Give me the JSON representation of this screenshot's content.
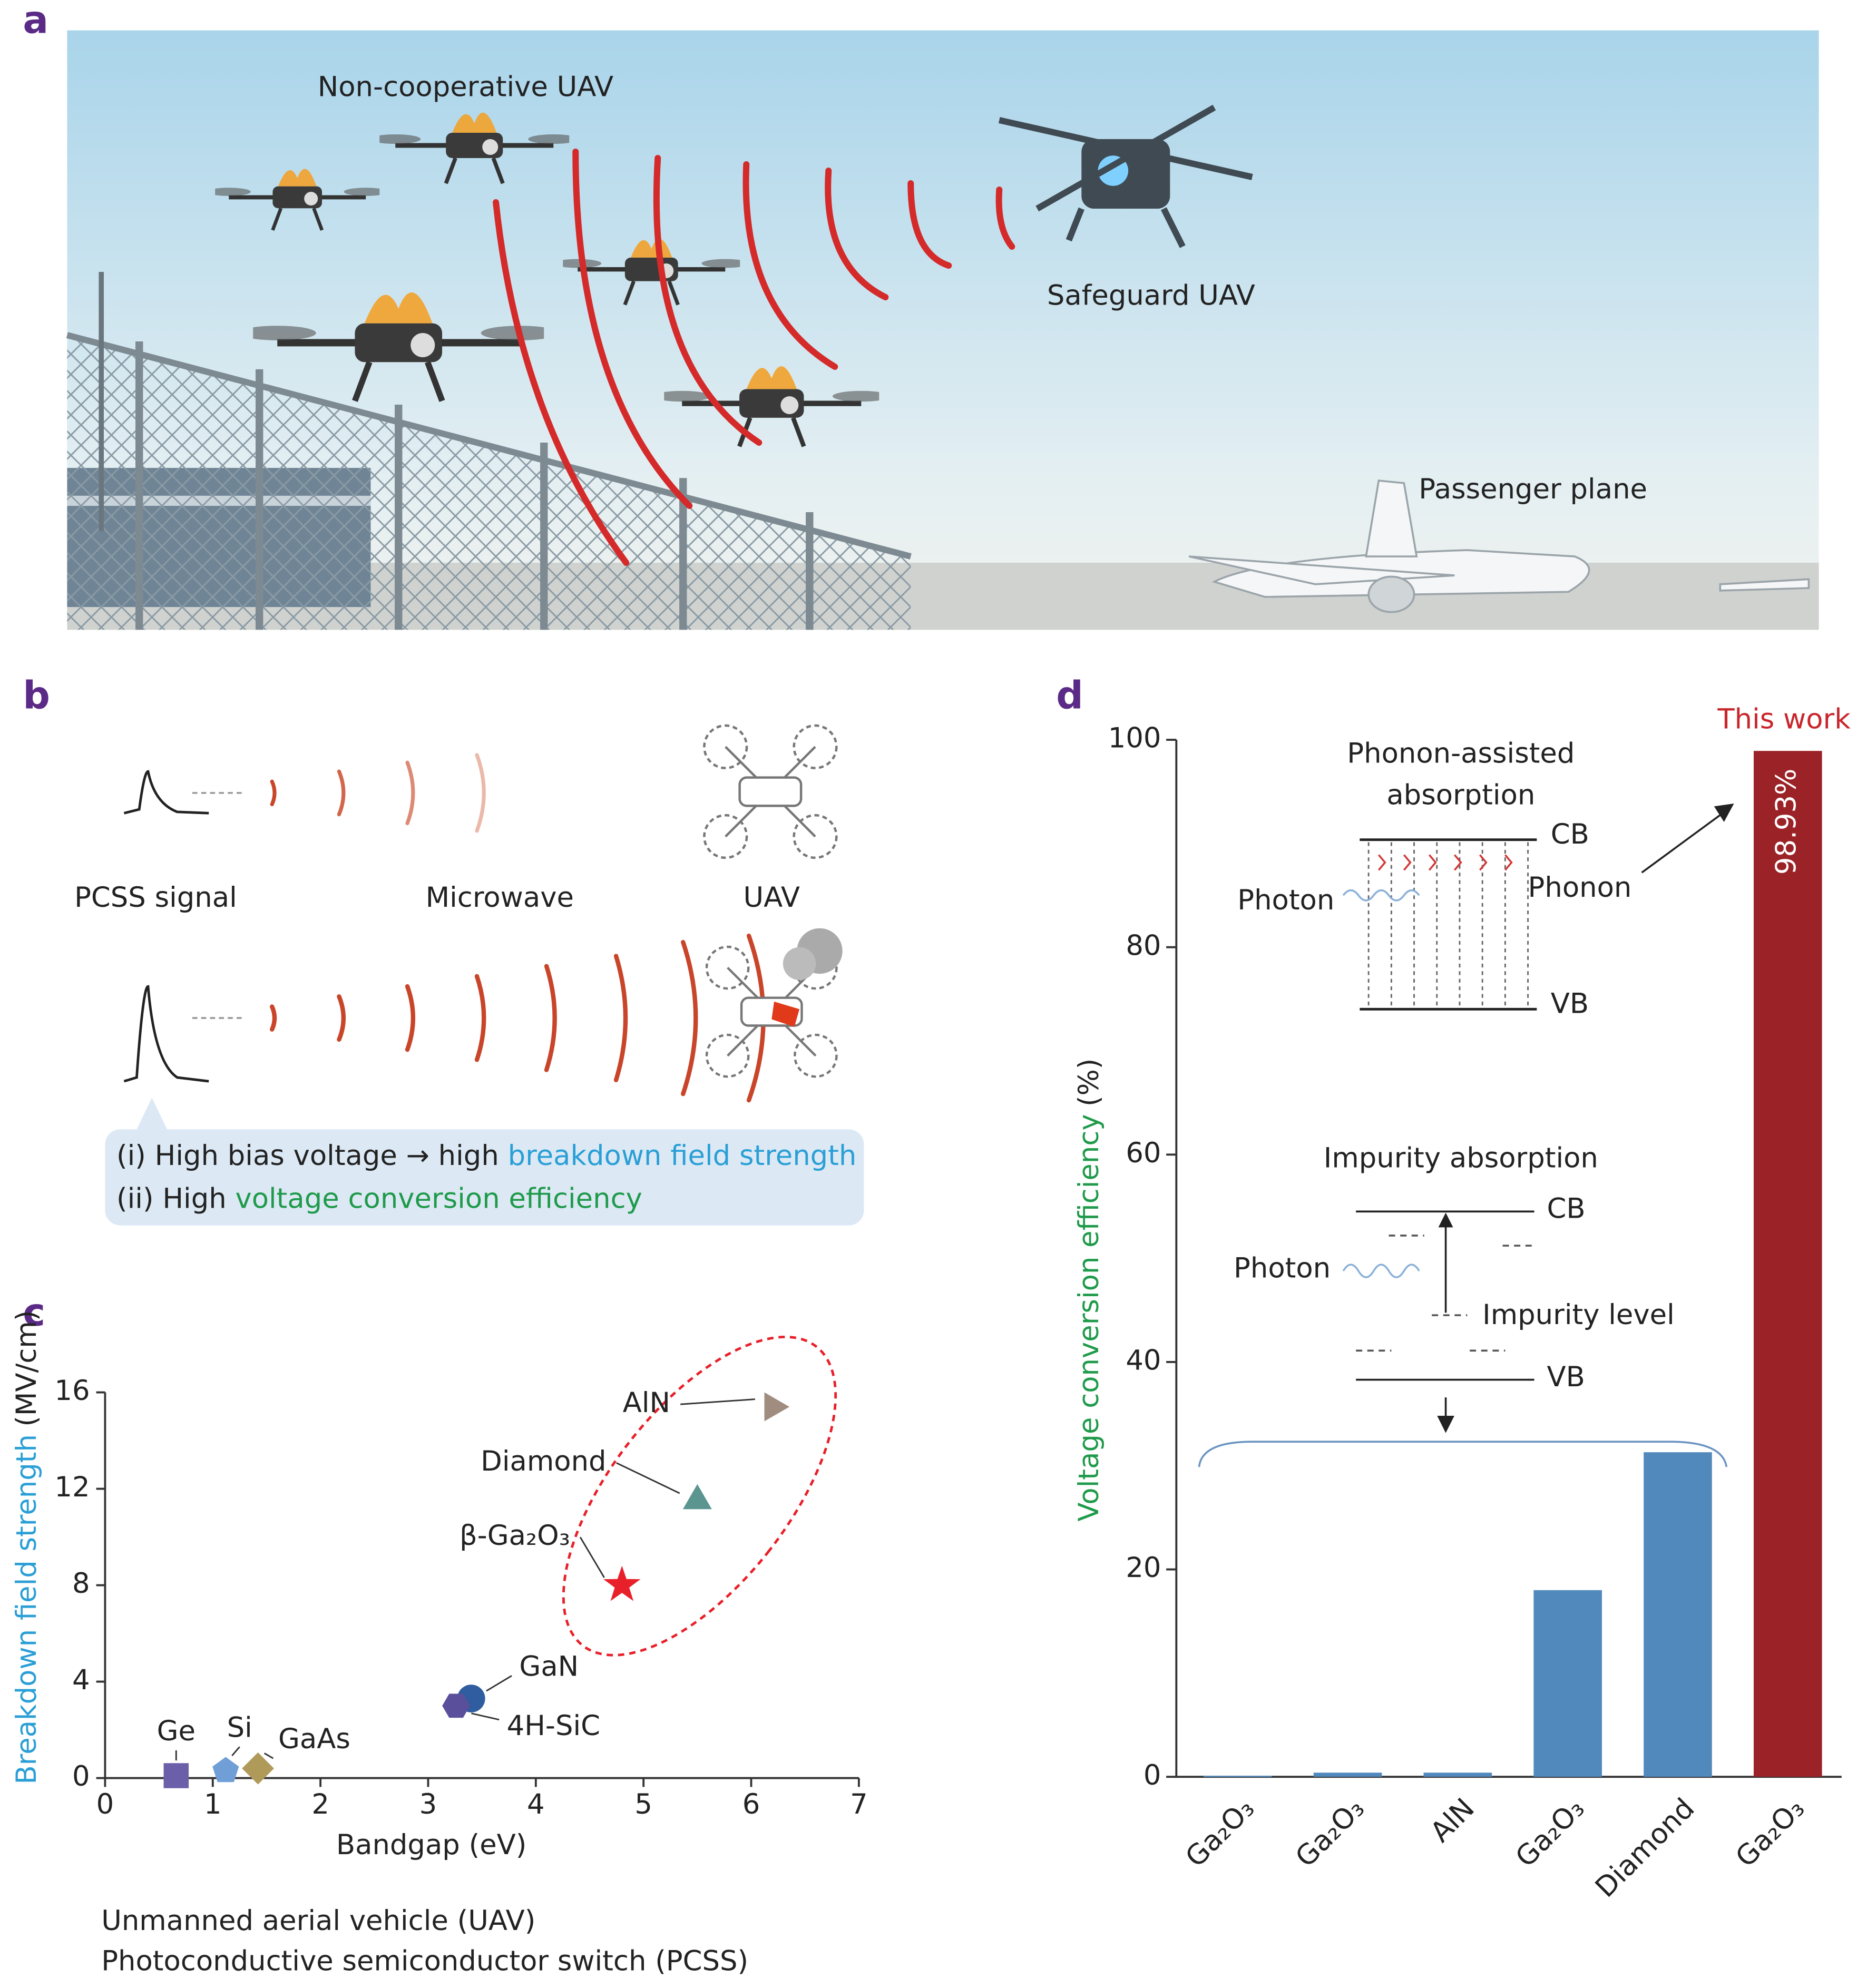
{
  "panel_labels": [
    "a",
    "b",
    "c",
    "d"
  ],
  "panel_a": {
    "labels": [
      "Non-cooperative UAV",
      "Safeguard UAV",
      "Passenger plane"
    ]
  },
  "panel_b": {
    "labels": [
      "PCSS signal",
      "Microwave",
      "UAV"
    ],
    "callout": [
      [
        "(i) High bias voltage → high ",
        "breakdown field strength"
      ],
      [
        "(ii) High ",
        "voltage conversion efficiency"
      ]
    ]
  },
  "chart_data": [
    {
      "type": "scatter",
      "xlabel": "Bandgap (eV)",
      "ylabel": "Breakdown field strength",
      "ylabel_unit": "(MV/cm)",
      "labels": [
        "Ge",
        "Si",
        "GaAs",
        "GaN",
        "4H-SiC",
        "β-Ga₂O₃",
        "Diamond",
        "AlN"
      ],
      "x": [
        0.66,
        1.12,
        1.42,
        3.4,
        3.26,
        4.8,
        5.5,
        6.2
      ],
      "values": [
        0.1,
        0.3,
        0.4,
        3.3,
        3.0,
        8,
        11.5,
        15.4
      ],
      "colors": [
        "#6a5fa8",
        "#6f9fd6",
        "#b09a5a",
        "#2f5d9f",
        "#5a4f9a",
        "#e8202a",
        "#5a9590",
        "#a08d80"
      ],
      "markers": [
        "square",
        "pentagon",
        "diamond",
        "circle",
        "hexagon",
        "star",
        "triangle",
        "right-triangle"
      ],
      "xlim": [
        0,
        7
      ],
      "xticks": [
        0,
        1,
        2,
        3,
        4,
        5,
        6,
        7
      ],
      "ylim": [
        0,
        16
      ],
      "yticks": [
        0,
        4,
        8,
        12,
        16
      ]
    },
    {
      "type": "bar",
      "ylabel": "Voltage conversion efficiency",
      "ylabel_unit": "(%)",
      "annotation": "This work",
      "categories": [
        "Ga₂O₃",
        "Ga₂O₃",
        "AlN",
        "Ga₂O₃",
        "Diamond",
        "Ga₂O₃"
      ],
      "values": [
        0.1,
        0.4,
        0.4,
        18,
        31.3,
        98.93
      ],
      "value_labels": [
        null,
        null,
        null,
        null,
        null,
        "98.93%"
      ],
      "colors": [
        "#5289bd",
        "#5289bd",
        "#5289bd",
        "#5289bd",
        "#5289bd",
        "#9b2226"
      ],
      "ylim": [
        0,
        100
      ],
      "yticks": [
        0,
        20,
        40,
        60,
        80,
        100
      ],
      "insets": {
        "phonon": {
          "title": [
            "Phonon-assisted",
            "absorption"
          ],
          "labels": [
            "CB",
            "VB",
            "Photon",
            "Phonon"
          ]
        },
        "impurity": {
          "title": "Impurity absorption",
          "labels": [
            "CB",
            "Photon",
            "Impurity level",
            "VB"
          ]
        }
      }
    }
  ],
  "footnotes": [
    "Unmanned aerial vehicle (UAV)",
    "Photoconductive semiconductor switch (PCSS)"
  ]
}
